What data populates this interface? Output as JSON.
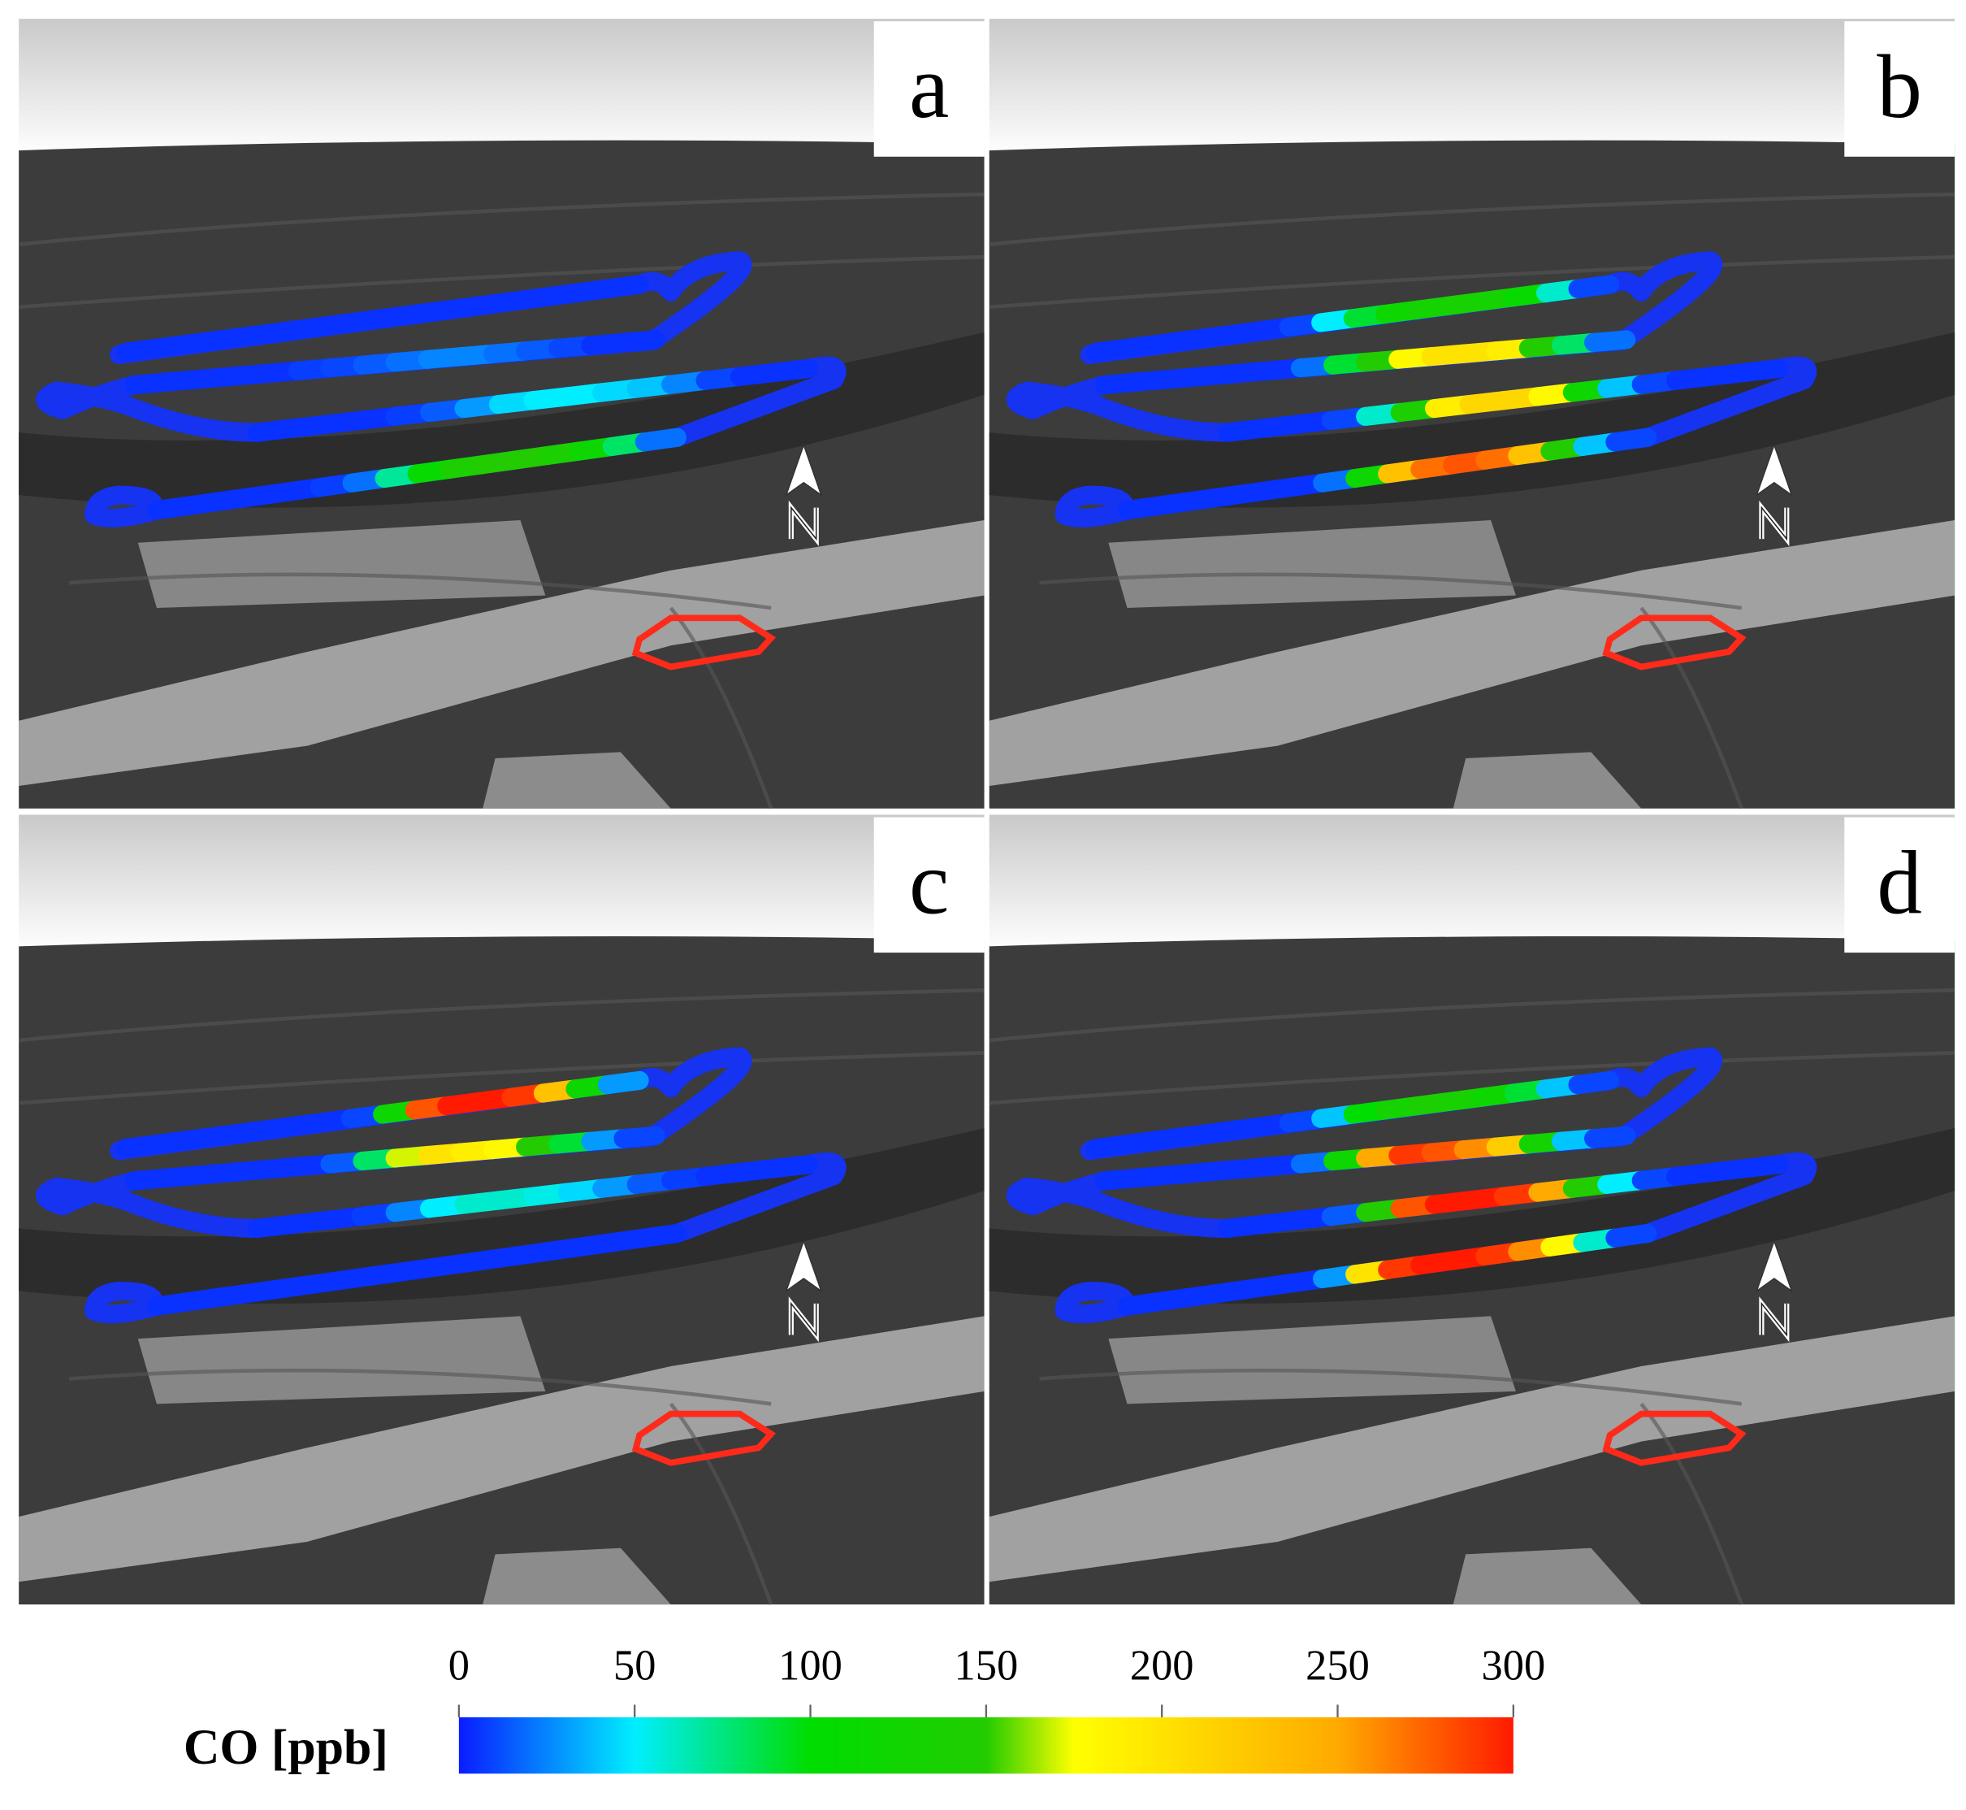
{
  "panels": [
    {
      "label": "a",
      "legs": [
        [
          5,
          5,
          5,
          5,
          5,
          5,
          5,
          5,
          5,
          5,
          5,
          5,
          5,
          5,
          5,
          5
        ],
        [
          5,
          5,
          5,
          5,
          5,
          8,
          10,
          15,
          20,
          25,
          25,
          20,
          15,
          10,
          5,
          5
        ],
        [
          5,
          5,
          5,
          5,
          8,
          15,
          30,
          45,
          50,
          50,
          45,
          40,
          25,
          10,
          5,
          5
        ],
        [
          5,
          5,
          5,
          5,
          5,
          8,
          20,
          70,
          110,
          140,
          150,
          150,
          140,
          120,
          80,
          20
        ]
      ]
    },
    {
      "label": "b",
      "legs": [
        [
          5,
          5,
          5,
          5,
          5,
          5,
          10,
          50,
          90,
          120,
          130,
          135,
          130,
          110,
          60,
          10
        ],
        [
          5,
          5,
          5,
          5,
          5,
          5,
          20,
          90,
          150,
          180,
          200,
          200,
          190,
          150,
          80,
          20
        ],
        [
          5,
          5,
          5,
          10,
          60,
          140,
          190,
          210,
          210,
          180,
          120,
          40,
          10,
          5,
          5,
          5
        ],
        [
          5,
          5,
          5,
          5,
          5,
          5,
          20,
          120,
          230,
          270,
          280,
          270,
          230,
          150,
          40,
          10
        ]
      ]
    },
    {
      "label": "c",
      "legs": [
        [
          5,
          5,
          5,
          5,
          5,
          5,
          5,
          10,
          120,
          280,
          300,
          300,
          290,
          230,
          120,
          30
        ],
        [
          5,
          5,
          5,
          5,
          5,
          5,
          15,
          80,
          170,
          200,
          190,
          180,
          150,
          90,
          30,
          10
        ],
        [
          5,
          5,
          5,
          8,
          25,
          50,
          60,
          60,
          55,
          45,
          30,
          15,
          8,
          5,
          5,
          5
        ],
        [
          5,
          5,
          5,
          5,
          5,
          5,
          5,
          5,
          5,
          5,
          5,
          5,
          5,
          5,
          5,
          5
        ]
      ]
    },
    {
      "label": "d",
      "legs": [
        [
          5,
          5,
          5,
          5,
          5,
          5,
          10,
          40,
          100,
          130,
          140,
          135,
          120,
          90,
          40,
          10
        ],
        [
          5,
          5,
          5,
          5,
          5,
          5,
          20,
          120,
          250,
          290,
          280,
          260,
          220,
          130,
          40,
          10
        ],
        [
          5,
          5,
          5,
          15,
          150,
          280,
          300,
          300,
          290,
          250,
          150,
          50,
          10,
          5,
          5,
          5
        ],
        [
          5,
          5,
          5,
          5,
          5,
          5,
          30,
          200,
          290,
          300,
          300,
          290,
          260,
          180,
          60,
          10
        ]
      ]
    }
  ],
  "colorbar": {
    "label": "CO [ppb]",
    "lim": [
      0,
      300
    ],
    "ticks": [
      0,
      50,
      100,
      150,
      200,
      250,
      300
    ],
    "colorscale": [
      [
        0,
        "#0a1cff"
      ],
      [
        50,
        "#00eeff"
      ],
      [
        100,
        "#00dd00"
      ],
      [
        150,
        "#22cc00"
      ],
      [
        175,
        "#ffff00"
      ],
      [
        250,
        "#ffaa00"
      ],
      [
        300,
        "#ff1a00"
      ]
    ]
  }
}
